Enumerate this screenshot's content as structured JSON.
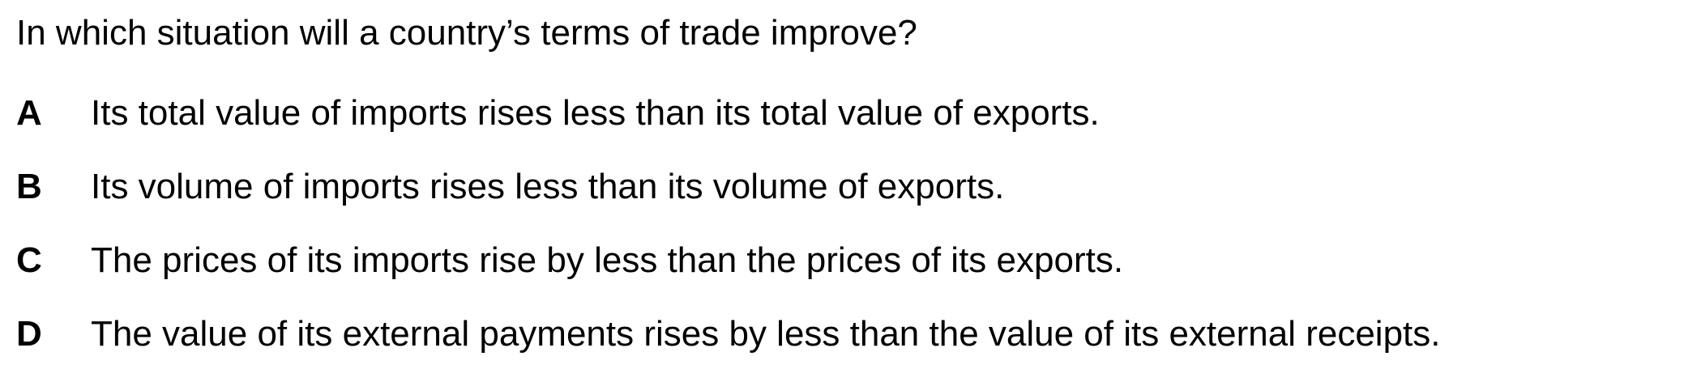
{
  "question": {
    "text": "In which situation will a country’s terms of trade improve?"
  },
  "options": [
    {
      "letter": "A",
      "text": "Its total value of imports rises less than its total value of exports."
    },
    {
      "letter": "B",
      "text": "Its volume of imports rises less than its volume of exports."
    },
    {
      "letter": "C",
      "text": "The prices of its imports rise by less than the prices of its exports."
    },
    {
      "letter": "D",
      "text": "The value of its external payments rises by less than the value of its external receipts."
    }
  ]
}
